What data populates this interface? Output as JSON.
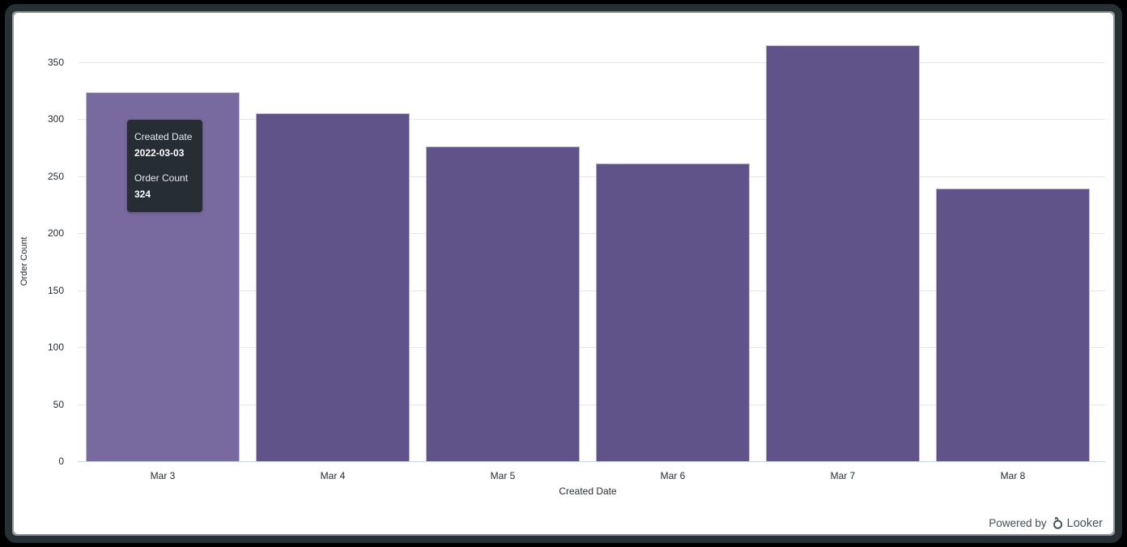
{
  "chart_data": {
    "type": "bar",
    "title": "",
    "categories": [
      "Mar 3",
      "Mar 4",
      "Mar 5",
      "Mar 6",
      "Mar 7",
      "Mar 8"
    ],
    "values": [
      324,
      305,
      276,
      261,
      365,
      239
    ],
    "xlabel": "Created Date",
    "ylabel": "Order Count",
    "yticks": [
      0,
      50,
      100,
      150,
      200,
      250,
      300,
      350
    ],
    "ylim": [
      0,
      350
    ],
    "grid": true,
    "legend": "none",
    "bar_color": "#5f5389",
    "hover_bar_color": "#786a9e",
    "hovered_index": 0,
    "gridline_color": "#e6e6e6",
    "axis_line_color": "#ccd6eb",
    "label_color": "#262d33"
  },
  "tooltip": {
    "dimension_label": "Created Date",
    "dimension_value": "2022-03-03",
    "measure_label": "Order Count",
    "measure_value": "324",
    "bg_color": "#262d33"
  },
  "footer": {
    "powered_by": "Powered by",
    "brand": "Looker"
  }
}
